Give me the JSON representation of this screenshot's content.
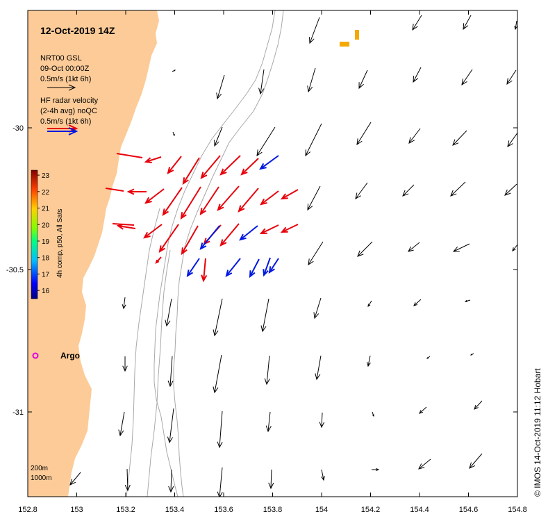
{
  "map": {
    "title": "12-Oct-2019 14Z",
    "legend_model": {
      "line1": "NRT00 GSL",
      "line2": "09-Oct 00:00Z",
      "line3": "0.5m/s (1kt 6h)"
    },
    "legend_radar": {
      "line1": "HF radar velocity",
      "line2": "(2-4h avg) noQC",
      "line3": "0.5m/s (1kt 6h)"
    },
    "colorbar": {
      "label": "4h comp, p50, All Sats",
      "ticks": [
        "23",
        "22",
        "21",
        "20",
        "19",
        "18",
        "17",
        "16"
      ],
      "min": 15.5,
      "max": 23.3
    },
    "x_ticks": [
      "152.8",
      "153",
      "153.2",
      "153.4",
      "153.6",
      "153.8",
      "154",
      "154.2",
      "154.4",
      "154.6",
      "154.8"
    ],
    "y_ticks": [
      "-30",
      "-30.5",
      "-31"
    ],
    "argo_label": "Argo",
    "depth_labels": [
      "200m",
      "1000m"
    ],
    "credit": "© IMOS 14-Oct-2019 11:12 Hobart",
    "colors": {
      "land": "#FCCB98",
      "model_arrow": "#000000",
      "radar_red": "#E8000B",
      "radar_blue": "#0018E0",
      "argo": "#E000E0",
      "sst_patch": "#F5A800",
      "isobath": "#A8A8A8"
    }
  }
}
